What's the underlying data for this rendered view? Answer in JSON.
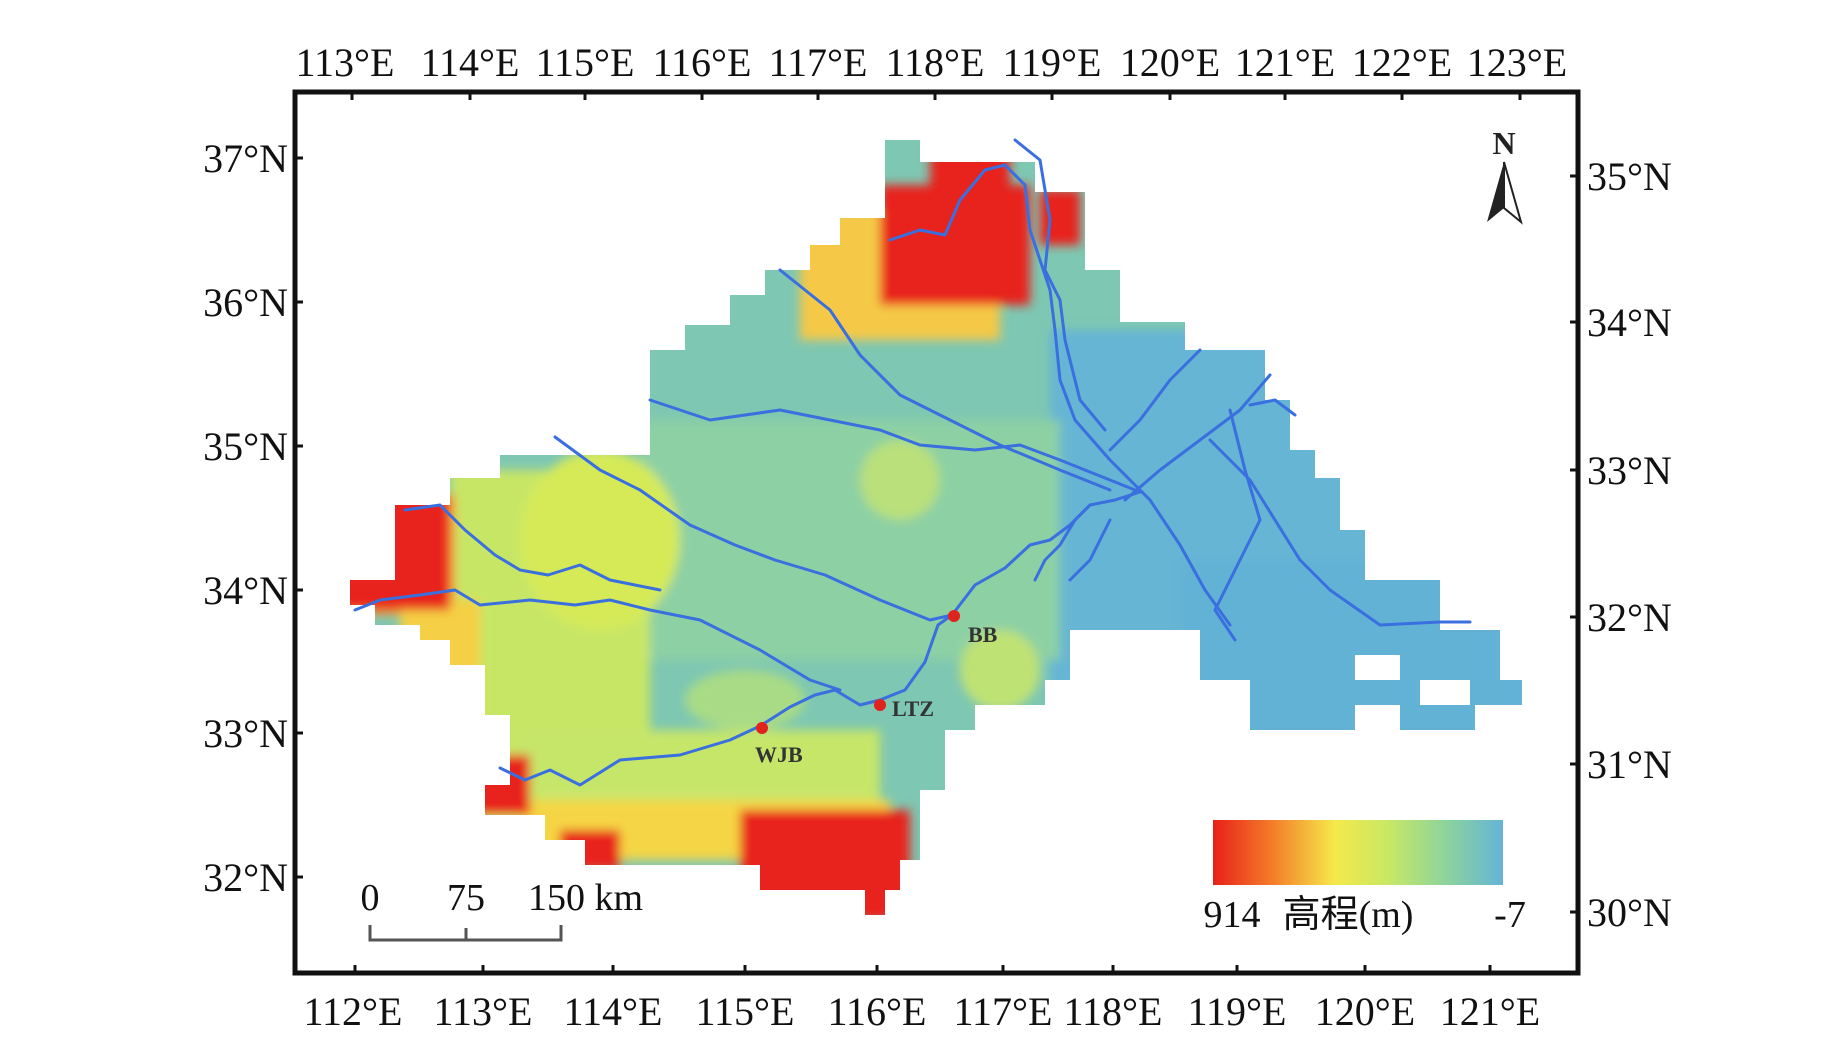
{
  "axes": {
    "top_lon": [
      "113°E",
      "114°E",
      "115°E",
      "116°E",
      "117°E",
      "118°E",
      "119°E",
      "120°E",
      "121°E",
      "122°E",
      "123°E"
    ],
    "bottom_lon": [
      "112°E",
      "113°E",
      "114°E",
      "115°E",
      "116°E",
      "117°E",
      "118°E",
      "119°E",
      "120°E",
      "121°E"
    ],
    "left_lat": [
      "37°N",
      "36°N",
      "35°N",
      "34°N",
      "33°N",
      "32°N"
    ],
    "right_lat": [
      "35°N",
      "34°N",
      "33°N",
      "32°N",
      "31°N",
      "30°N"
    ]
  },
  "sites": [
    {
      "code": "BB"
    },
    {
      "code": "LTZ"
    },
    {
      "code": "WJB"
    }
  ],
  "scale_bar": {
    "t0": "0",
    "t1": "75",
    "t2": "150 km"
  },
  "legend": {
    "max": "914",
    "title": "高程(m)",
    "min": "-7",
    "colors": [
      "#e8201a",
      "#f47a28",
      "#f5e94a",
      "#c9e864",
      "#8ed49a",
      "#63b4d8"
    ]
  },
  "north_arrow": {
    "letter": "N"
  },
  "colors": {
    "frame": "#111111",
    "river": "#3a6fe0",
    "site": "#e0231c"
  }
}
